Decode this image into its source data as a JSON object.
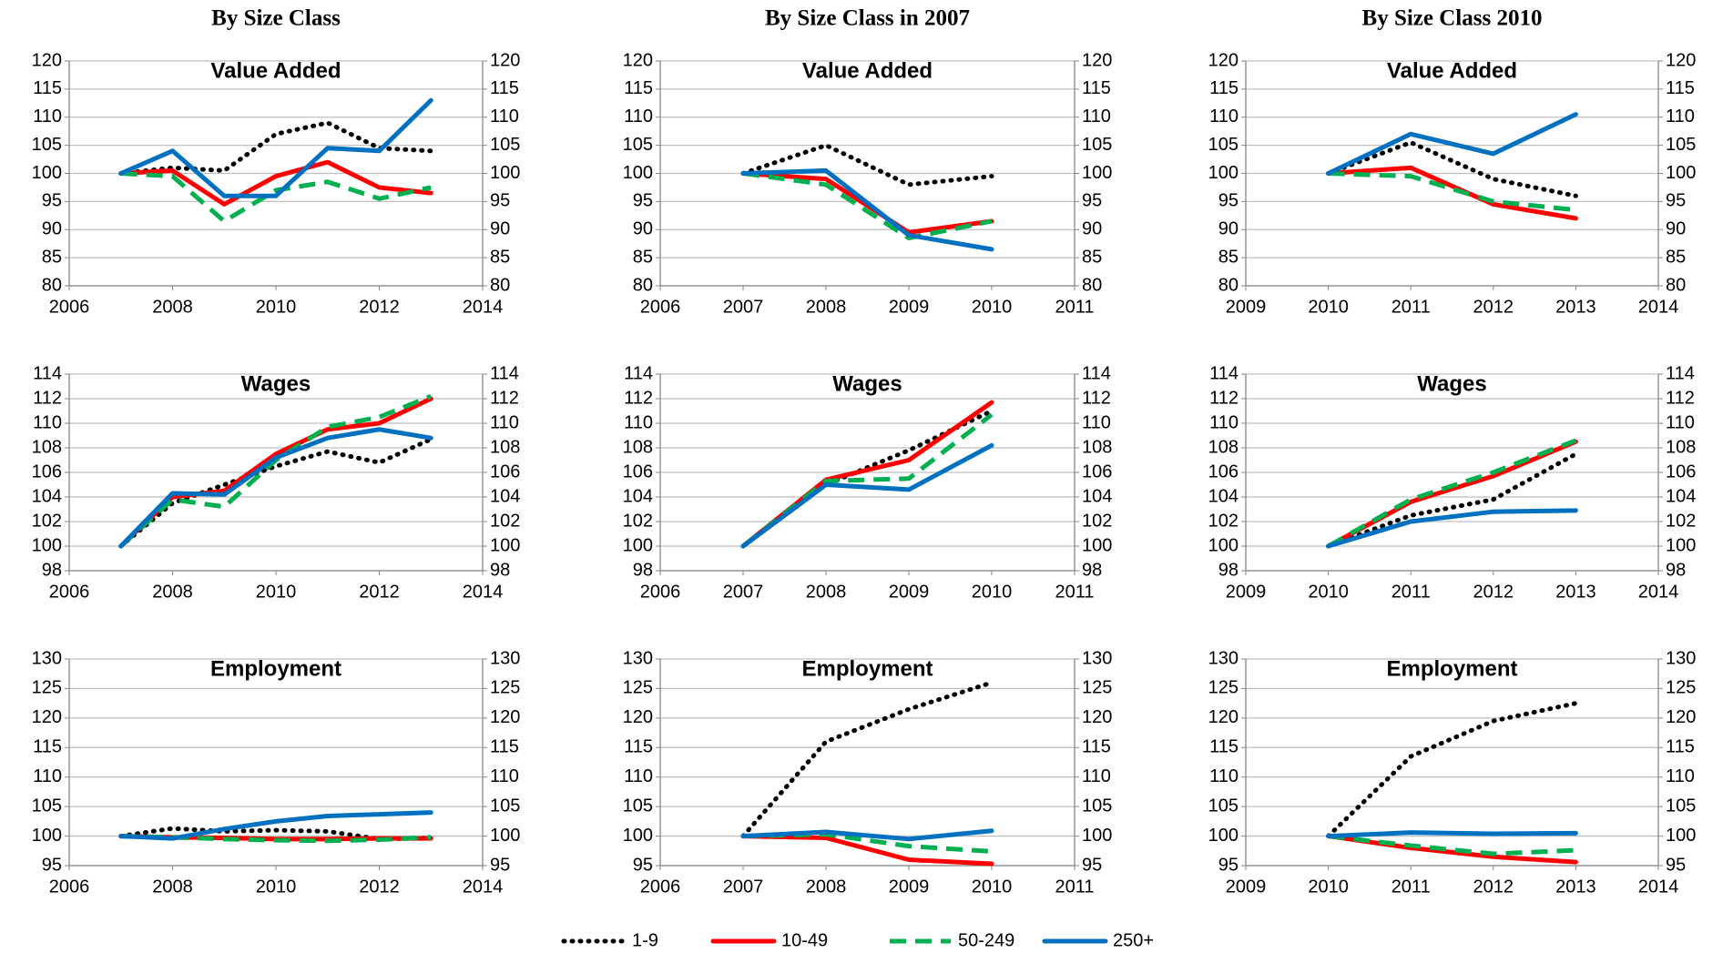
{
  "column_titles": [
    "By Size Class",
    "By Size Class in 2007",
    "By Size Class 2010"
  ],
  "chart_data": [
    {
      "type": "line",
      "title": "Value Added",
      "x": [
        2007,
        2008,
        2009,
        2010,
        2011,
        2012,
        2013
      ],
      "xlim": [
        2006,
        2014
      ],
      "xticks": [
        2006,
        2008,
        2010,
        2012,
        2014
      ],
      "ylim": [
        80,
        120
      ],
      "yticks": [
        80,
        85,
        90,
        95,
        100,
        105,
        110,
        115,
        120
      ],
      "grid": true,
      "series": [
        {
          "name": "1-9",
          "color": "#000000",
          "style": "dotted",
          "values": [
            100,
            101,
            100.5,
            107,
            109,
            104.5,
            104
          ]
        },
        {
          "name": "10-49",
          "color": "#ff0000",
          "style": "solid",
          "values": [
            100,
            100.5,
            94.5,
            99.5,
            102,
            97.5,
            96.5
          ]
        },
        {
          "name": "50-249",
          "color": "#00b050",
          "style": "dashed",
          "values": [
            100,
            99.5,
            91.5,
            97,
            98.5,
            95.5,
            97.5
          ]
        },
        {
          "name": "250+",
          "color": "#0070c0",
          "style": "solid",
          "values": [
            100,
            104,
            96,
            96,
            104.5,
            104,
            113
          ]
        }
      ]
    },
    {
      "type": "line",
      "title": "Value Added",
      "x": [
        2007,
        2008,
        2009,
        2010
      ],
      "xlim": [
        2006,
        2011
      ],
      "xticks": [
        2006,
        2007,
        2008,
        2009,
        2010,
        2011
      ],
      "ylim": [
        80,
        120
      ],
      "yticks": [
        80,
        85,
        90,
        95,
        100,
        105,
        110,
        115,
        120
      ],
      "grid": true,
      "series": [
        {
          "name": "1-9",
          "color": "#000000",
          "style": "dotted",
          "values": [
            100,
            105,
            98,
            99.5
          ]
        },
        {
          "name": "10-49",
          "color": "#ff0000",
          "style": "solid",
          "values": [
            100,
            99,
            89.5,
            91.5
          ]
        },
        {
          "name": "50-249",
          "color": "#00b050",
          "style": "dashed",
          "values": [
            100,
            98,
            88.5,
            91.5
          ]
        },
        {
          "name": "250+",
          "color": "#0070c0",
          "style": "solid",
          "values": [
            100,
            100.5,
            89,
            86.5
          ]
        }
      ]
    },
    {
      "type": "line",
      "title": "Value Added",
      "x": [
        2010,
        2011,
        2012,
        2013
      ],
      "xlim": [
        2009,
        2014
      ],
      "xticks": [
        2009,
        2010,
        2011,
        2012,
        2013,
        2014
      ],
      "ylim": [
        80,
        120
      ],
      "yticks": [
        80,
        85,
        90,
        95,
        100,
        105,
        110,
        115,
        120
      ],
      "grid": true,
      "series": [
        {
          "name": "1-9",
          "color": "#000000",
          "style": "dotted",
          "values": [
            100,
            105.5,
            99,
            96
          ]
        },
        {
          "name": "10-49",
          "color": "#ff0000",
          "style": "solid",
          "values": [
            100,
            101,
            94.5,
            92
          ]
        },
        {
          "name": "50-249",
          "color": "#00b050",
          "style": "dashed",
          "values": [
            100,
            99.5,
            95,
            93.5
          ]
        },
        {
          "name": "250+",
          "color": "#0070c0",
          "style": "solid",
          "values": [
            100,
            107,
            103.5,
            110.5
          ]
        }
      ]
    },
    {
      "type": "line",
      "title": "Wages",
      "x": [
        2007,
        2008,
        2009,
        2010,
        2011,
        2012,
        2013
      ],
      "xlim": [
        2006,
        2014
      ],
      "xticks": [
        2006,
        2008,
        2010,
        2012,
        2014
      ],
      "ylim": [
        98,
        114
      ],
      "yticks": [
        98,
        100,
        102,
        104,
        106,
        108,
        110,
        112,
        114
      ],
      "grid": true,
      "series": [
        {
          "name": "1-9",
          "color": "#000000",
          "style": "dotted",
          "values": [
            100,
            103.5,
            105,
            106.5,
            107.7,
            106.8,
            108.7
          ]
        },
        {
          "name": "10-49",
          "color": "#ff0000",
          "style": "solid",
          "values": [
            100,
            104,
            104.5,
            107.5,
            109.5,
            110,
            112
          ]
        },
        {
          "name": "50-249",
          "color": "#00b050",
          "style": "dashed",
          "values": [
            100,
            103.8,
            103.2,
            107,
            109.7,
            110.5,
            112.2
          ]
        },
        {
          "name": "250+",
          "color": "#0070c0",
          "style": "solid",
          "values": [
            100,
            104.3,
            104.2,
            107.2,
            108.8,
            109.5,
            108.8
          ]
        }
      ]
    },
    {
      "type": "line",
      "title": "Wages",
      "x": [
        2007,
        2008,
        2009,
        2010
      ],
      "xlim": [
        2006,
        2011
      ],
      "xticks": [
        2006,
        2007,
        2008,
        2009,
        2010,
        2011
      ],
      "ylim": [
        98,
        114
      ],
      "yticks": [
        98,
        100,
        102,
        104,
        106,
        108,
        110,
        112,
        114
      ],
      "grid": true,
      "series": [
        {
          "name": "1-9",
          "color": "#000000",
          "style": "dotted",
          "values": [
            100,
            105,
            107.8,
            111
          ]
        },
        {
          "name": "10-49",
          "color": "#ff0000",
          "style": "solid",
          "values": [
            100,
            105.4,
            107,
            111.7
          ]
        },
        {
          "name": "50-249",
          "color": "#00b050",
          "style": "dashed",
          "values": [
            100,
            105.3,
            105.5,
            110.7
          ]
        },
        {
          "name": "250+",
          "color": "#0070c0",
          "style": "solid",
          "values": [
            100,
            105,
            104.6,
            108.2
          ]
        }
      ]
    },
    {
      "type": "line",
      "title": "Wages",
      "x": [
        2010,
        2011,
        2012,
        2013
      ],
      "xlim": [
        2009,
        2014
      ],
      "xticks": [
        2009,
        2010,
        2011,
        2012,
        2013,
        2014
      ],
      "ylim": [
        98,
        114
      ],
      "yticks": [
        98,
        100,
        102,
        104,
        106,
        108,
        110,
        112,
        114
      ],
      "grid": true,
      "series": [
        {
          "name": "1-9",
          "color": "#000000",
          "style": "dotted",
          "values": [
            100,
            102.5,
            103.8,
            107.5
          ]
        },
        {
          "name": "10-49",
          "color": "#ff0000",
          "style": "solid",
          "values": [
            100,
            103.6,
            105.7,
            108.5
          ]
        },
        {
          "name": "50-249",
          "color": "#00b050",
          "style": "dashed",
          "values": [
            100,
            103.8,
            106,
            108.6
          ]
        },
        {
          "name": "250+",
          "color": "#0070c0",
          "style": "solid",
          "values": [
            100,
            102,
            102.8,
            102.9
          ]
        }
      ]
    },
    {
      "type": "line",
      "title": "Employment",
      "x": [
        2007,
        2008,
        2009,
        2010,
        2011,
        2012,
        2013
      ],
      "xlim": [
        2006,
        2014
      ],
      "xticks": [
        2006,
        2008,
        2010,
        2012,
        2014
      ],
      "ylim": [
        95,
        130
      ],
      "yticks": [
        95,
        100,
        105,
        110,
        115,
        120,
        125,
        130
      ],
      "grid": true,
      "series": [
        {
          "name": "1-9",
          "color": "#000000",
          "style": "dotted",
          "values": [
            100,
            101.3,
            100.8,
            101,
            100.8,
            99.5,
            99.7
          ]
        },
        {
          "name": "10-49",
          "color": "#ff0000",
          "style": "solid",
          "values": [
            100,
            99.8,
            99.7,
            99.5,
            99.5,
            99.6,
            99.6
          ]
        },
        {
          "name": "50-249",
          "color": "#00b050",
          "style": "dashed",
          "values": [
            100,
            99.8,
            99.5,
            99.3,
            99.2,
            99.4,
            99.8
          ]
        },
        {
          "name": "250+",
          "color": "#0070c0",
          "style": "solid",
          "values": [
            100,
            99.6,
            101.2,
            102.5,
            103.4,
            103.7,
            104
          ]
        }
      ]
    },
    {
      "type": "line",
      "title": "Employment",
      "x": [
        2007,
        2008,
        2009,
        2010
      ],
      "xlim": [
        2006,
        2011
      ],
      "xticks": [
        2006,
        2007,
        2008,
        2009,
        2010,
        2011
      ],
      "ylim": [
        95,
        130
      ],
      "yticks": [
        95,
        100,
        105,
        110,
        115,
        120,
        125,
        130
      ],
      "grid": true,
      "series": [
        {
          "name": "1-9",
          "color": "#000000",
          "style": "dotted",
          "values": [
            100,
            116,
            121.5,
            126
          ]
        },
        {
          "name": "10-49",
          "color": "#ff0000",
          "style": "solid",
          "values": [
            100,
            99.7,
            96,
            95.3
          ]
        },
        {
          "name": "50-249",
          "color": "#00b050",
          "style": "dashed",
          "values": [
            100,
            100.3,
            98.3,
            97.4
          ]
        },
        {
          "name": "250+",
          "color": "#0070c0",
          "style": "solid",
          "values": [
            100,
            100.7,
            99.5,
            100.9
          ]
        }
      ]
    },
    {
      "type": "line",
      "title": "Employment",
      "x": [
        2010,
        2011,
        2012,
        2013
      ],
      "xlim": [
        2009,
        2014
      ],
      "xticks": [
        2009,
        2010,
        2011,
        2012,
        2013,
        2014
      ],
      "ylim": [
        95,
        130
      ],
      "yticks": [
        95,
        100,
        105,
        110,
        115,
        120,
        125,
        130
      ],
      "grid": true,
      "series": [
        {
          "name": "1-9",
          "color": "#000000",
          "style": "dotted",
          "values": [
            100,
            113.5,
            119.5,
            122.5
          ]
        },
        {
          "name": "10-49",
          "color": "#ff0000",
          "style": "solid",
          "values": [
            100,
            98,
            96.5,
            95.6
          ]
        },
        {
          "name": "50-249",
          "color": "#00b050",
          "style": "dashed",
          "values": [
            100,
            98.4,
            97,
            97.6
          ]
        },
        {
          "name": "250+",
          "color": "#0070c0",
          "style": "solid",
          "values": [
            100,
            100.6,
            100.4,
            100.5
          ]
        }
      ]
    }
  ]
}
